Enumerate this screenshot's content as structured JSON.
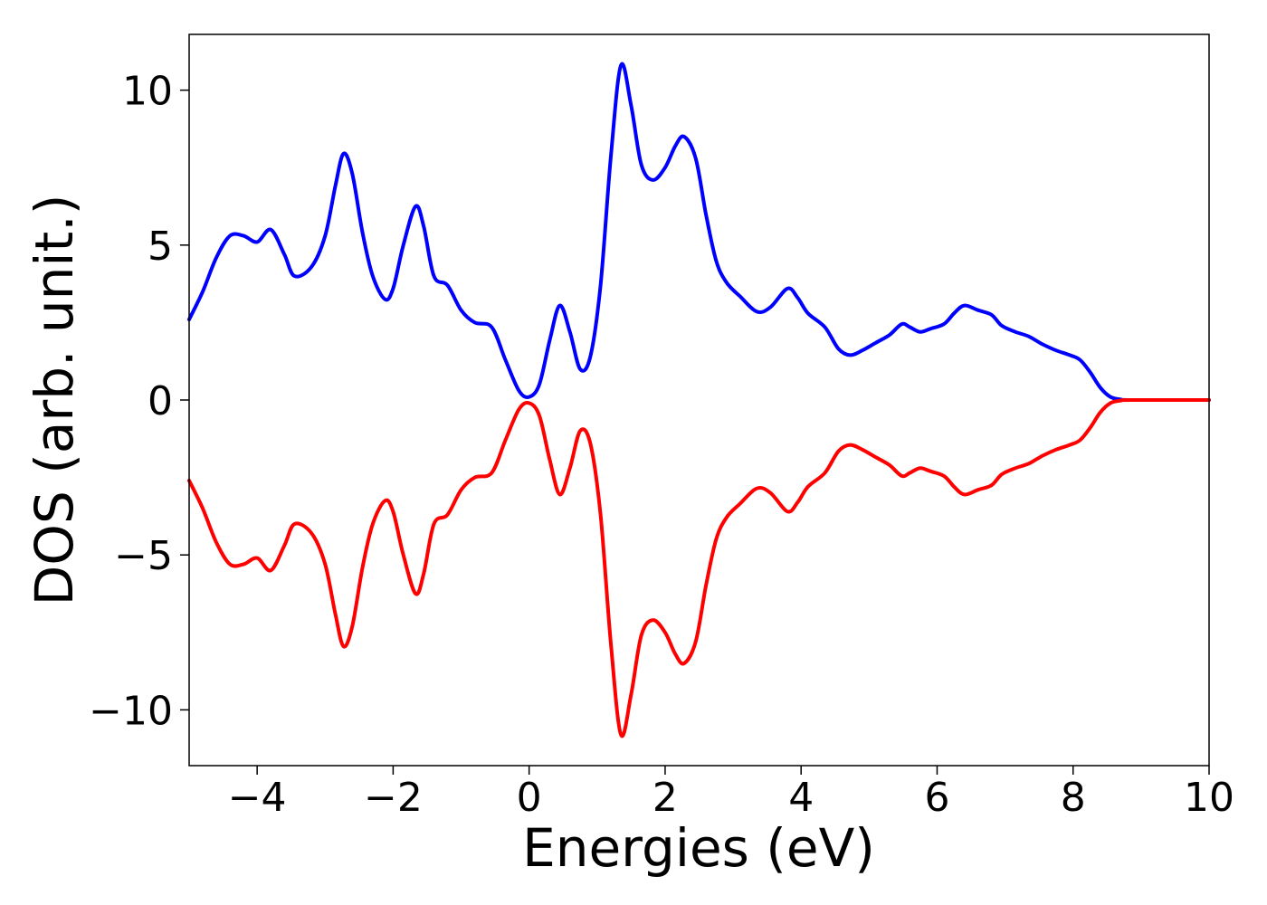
{
  "chart_data": {
    "type": "line",
    "title": "",
    "xlabel": "Energies (eV)",
    "ylabel": "DOS (arb. unit.)",
    "xlim": [
      -5,
      10
    ],
    "ylim": [
      -11.8,
      11.8
    ],
    "grid": false,
    "legend": "none",
    "x_ticks": [
      -4,
      -2,
      0,
      2,
      4,
      6,
      8,
      10
    ],
    "x_tick_labels": [
      "−4",
      "−2",
      "0",
      "2",
      "4",
      "6",
      "8",
      "10"
    ],
    "y_ticks": [
      -10,
      -5,
      0,
      5,
      10
    ],
    "y_tick_labels": [
      "−10",
      "−5",
      "0",
      "5",
      "10"
    ],
    "series": [
      {
        "color": "#0000ff",
        "points": [
          [
            -5.0,
            2.6
          ],
          [
            -4.8,
            3.5
          ],
          [
            -4.6,
            4.6
          ],
          [
            -4.4,
            5.3
          ],
          [
            -4.2,
            5.3
          ],
          [
            -4.0,
            5.1
          ],
          [
            -3.8,
            5.5
          ],
          [
            -3.6,
            4.7
          ],
          [
            -3.45,
            4.0
          ],
          [
            -3.2,
            4.3
          ],
          [
            -3.0,
            5.3
          ],
          [
            -2.85,
            6.9
          ],
          [
            -2.73,
            7.95
          ],
          [
            -2.6,
            7.3
          ],
          [
            -2.45,
            5.4
          ],
          [
            -2.3,
            4.0
          ],
          [
            -2.12,
            3.25
          ],
          [
            -2.0,
            3.6
          ],
          [
            -1.85,
            5.0
          ],
          [
            -1.67,
            6.25
          ],
          [
            -1.55,
            5.6
          ],
          [
            -1.4,
            4.0
          ],
          [
            -1.2,
            3.7
          ],
          [
            -1.0,
            2.9
          ],
          [
            -0.8,
            2.5
          ],
          [
            -0.55,
            2.35
          ],
          [
            -0.35,
            1.3
          ],
          [
            -0.15,
            0.3
          ],
          [
            0.0,
            0.1
          ],
          [
            0.15,
            0.5
          ],
          [
            0.3,
            1.9
          ],
          [
            0.45,
            3.05
          ],
          [
            0.6,
            2.2
          ],
          [
            0.75,
            1.0
          ],
          [
            0.9,
            1.4
          ],
          [
            1.05,
            3.7
          ],
          [
            1.2,
            7.8
          ],
          [
            1.35,
            10.8
          ],
          [
            1.5,
            9.5
          ],
          [
            1.65,
            7.6
          ],
          [
            1.82,
            7.1
          ],
          [
            2.0,
            7.5
          ],
          [
            2.15,
            8.2
          ],
          [
            2.28,
            8.5
          ],
          [
            2.45,
            7.8
          ],
          [
            2.6,
            6.0
          ],
          [
            2.75,
            4.5
          ],
          [
            2.9,
            3.8
          ],
          [
            3.1,
            3.35
          ],
          [
            3.35,
            2.85
          ],
          [
            3.55,
            3.0
          ],
          [
            3.8,
            3.6
          ],
          [
            3.95,
            3.3
          ],
          [
            4.1,
            2.8
          ],
          [
            4.35,
            2.35
          ],
          [
            4.55,
            1.65
          ],
          [
            4.72,
            1.45
          ],
          [
            4.9,
            1.6
          ],
          [
            5.1,
            1.85
          ],
          [
            5.3,
            2.1
          ],
          [
            5.48,
            2.45
          ],
          [
            5.6,
            2.35
          ],
          [
            5.75,
            2.2
          ],
          [
            5.9,
            2.3
          ],
          [
            6.1,
            2.45
          ],
          [
            6.25,
            2.8
          ],
          [
            6.4,
            3.05
          ],
          [
            6.6,
            2.9
          ],
          [
            6.8,
            2.75
          ],
          [
            6.95,
            2.4
          ],
          [
            7.15,
            2.2
          ],
          [
            7.35,
            2.05
          ],
          [
            7.55,
            1.8
          ],
          [
            7.75,
            1.6
          ],
          [
            7.95,
            1.45
          ],
          [
            8.1,
            1.3
          ],
          [
            8.25,
            0.9
          ],
          [
            8.4,
            0.4
          ],
          [
            8.55,
            0.1
          ],
          [
            8.7,
            0.02
          ],
          [
            8.85,
            0.0
          ],
          [
            10.0,
            0.0
          ]
        ]
      },
      {
        "color": "#ff0000",
        "points": [
          [
            -5.0,
            -2.6
          ],
          [
            -4.8,
            -3.5
          ],
          [
            -4.6,
            -4.6
          ],
          [
            -4.4,
            -5.3
          ],
          [
            -4.2,
            -5.3
          ],
          [
            -4.0,
            -5.1
          ],
          [
            -3.8,
            -5.5
          ],
          [
            -3.6,
            -4.7
          ],
          [
            -3.45,
            -4.0
          ],
          [
            -3.2,
            -4.3
          ],
          [
            -3.0,
            -5.3
          ],
          [
            -2.85,
            -6.9
          ],
          [
            -2.73,
            -7.95
          ],
          [
            -2.6,
            -7.3
          ],
          [
            -2.45,
            -5.4
          ],
          [
            -2.3,
            -4.0
          ],
          [
            -2.12,
            -3.25
          ],
          [
            -2.0,
            -3.6
          ],
          [
            -1.85,
            -5.0
          ],
          [
            -1.67,
            -6.25
          ],
          [
            -1.55,
            -5.6
          ],
          [
            -1.4,
            -4.0
          ],
          [
            -1.2,
            -3.7
          ],
          [
            -1.0,
            -2.9
          ],
          [
            -0.8,
            -2.5
          ],
          [
            -0.55,
            -2.35
          ],
          [
            -0.35,
            -1.3
          ],
          [
            -0.15,
            -0.3
          ],
          [
            0.0,
            -0.1
          ],
          [
            0.15,
            -0.5
          ],
          [
            0.3,
            -1.9
          ],
          [
            0.45,
            -3.05
          ],
          [
            0.6,
            -2.2
          ],
          [
            0.75,
            -1.0
          ],
          [
            0.9,
            -1.4
          ],
          [
            1.05,
            -3.7
          ],
          [
            1.2,
            -7.8
          ],
          [
            1.35,
            -10.8
          ],
          [
            1.5,
            -9.5
          ],
          [
            1.65,
            -7.6
          ],
          [
            1.82,
            -7.1
          ],
          [
            2.0,
            -7.5
          ],
          [
            2.15,
            -8.2
          ],
          [
            2.28,
            -8.5
          ],
          [
            2.45,
            -7.8
          ],
          [
            2.6,
            -6.0
          ],
          [
            2.75,
            -4.5
          ],
          [
            2.9,
            -3.8
          ],
          [
            3.1,
            -3.35
          ],
          [
            3.35,
            -2.85
          ],
          [
            3.55,
            -3.0
          ],
          [
            3.8,
            -3.6
          ],
          [
            3.95,
            -3.3
          ],
          [
            4.1,
            -2.8
          ],
          [
            4.35,
            -2.35
          ],
          [
            4.55,
            -1.65
          ],
          [
            4.72,
            -1.45
          ],
          [
            4.9,
            -1.6
          ],
          [
            5.1,
            -1.85
          ],
          [
            5.3,
            -2.1
          ],
          [
            5.48,
            -2.45
          ],
          [
            5.6,
            -2.35
          ],
          [
            5.75,
            -2.2
          ],
          [
            5.9,
            -2.3
          ],
          [
            6.1,
            -2.45
          ],
          [
            6.25,
            -2.8
          ],
          [
            6.4,
            -3.05
          ],
          [
            6.6,
            -2.9
          ],
          [
            6.8,
            -2.75
          ],
          [
            6.95,
            -2.4
          ],
          [
            7.15,
            -2.2
          ],
          [
            7.35,
            -2.05
          ],
          [
            7.55,
            -1.8
          ],
          [
            7.75,
            -1.6
          ],
          [
            7.95,
            -1.45
          ],
          [
            8.1,
            -1.3
          ],
          [
            8.25,
            -0.9
          ],
          [
            8.4,
            -0.4
          ],
          [
            8.55,
            -0.1
          ],
          [
            8.7,
            -0.02
          ],
          [
            8.85,
            0.0
          ],
          [
            10.0,
            0.0
          ]
        ]
      }
    ]
  }
}
